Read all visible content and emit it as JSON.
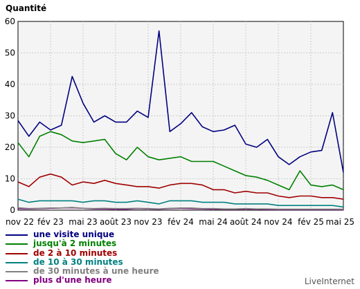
{
  "chart_data": {
    "type": "line",
    "ylabel": "Quantité",
    "ylim": [
      0,
      60
    ],
    "yticks": [
      0,
      10,
      20,
      30,
      40,
      50,
      60
    ],
    "xtick_labels": [
      "nov 22",
      "fév 23",
      "mai 23",
      "août 23",
      "nov 23",
      "fév 24",
      "mai 24",
      "août 24",
      "nov 24",
      "fév 25",
      "mai 25"
    ],
    "grid": true,
    "legend_position": "bottom-left",
    "series": [
      {
        "name": "une visite unique",
        "color": "#000080",
        "values": [
          28.5,
          23.5,
          28,
          25.5,
          27,
          42.5,
          34,
          28,
          30,
          28,
          28,
          31.5,
          29.5,
          57,
          25,
          27.5,
          31,
          26.5,
          25,
          25.5,
          27,
          21,
          20,
          22.5,
          17,
          14.5,
          17,
          18.5,
          19,
          31,
          12
        ]
      },
      {
        "name": "jusqu'à 2 minutes",
        "color": "#008000",
        "values": [
          21.5,
          17,
          23.5,
          25,
          24,
          22,
          21.5,
          22,
          22.5,
          18,
          16,
          20,
          17,
          16,
          16.5,
          17,
          15.5,
          15.5,
          15.5,
          14,
          12.5,
          11,
          10.5,
          9.5,
          8,
          6.5,
          12.5,
          8,
          7.5,
          8,
          6.5
        ]
      },
      {
        "name": "de 2 à 10 minutes",
        "color": "#a00000",
        "values": [
          9,
          7.5,
          10.5,
          11.5,
          10.5,
          8,
          9,
          8.5,
          9.5,
          8.5,
          8,
          7.5,
          7.5,
          7,
          8,
          8.5,
          8.5,
          8,
          6.5,
          6.5,
          5.5,
          6,
          5.5,
          5.5,
          4.5,
          4,
          4.5,
          4.5,
          4,
          4,
          3.5
        ]
      },
      {
        "name": "de 10 à 30 minutes",
        "color": "#008080",
        "values": [
          3.5,
          2.5,
          3,
          3,
          3,
          3,
          2.5,
          3,
          3,
          2.5,
          2.5,
          3,
          2.5,
          2,
          3,
          3,
          3,
          2.5,
          2.5,
          2.5,
          2,
          2,
          2,
          2,
          1.5,
          1.5,
          1.5,
          1.5,
          1.5,
          1.5,
          1
        ]
      },
      {
        "name": "de 30 minutes à une heure",
        "color": "#808080",
        "values": [
          0.8,
          0.5,
          0.6,
          0.7,
          0.7,
          0.9,
          0.6,
          0.5,
          0.6,
          0.5,
          0.5,
          0.6,
          0.5,
          0.4,
          0.6,
          0.7,
          0.7,
          0.5,
          0.5,
          0.4,
          0.4,
          0.5,
          0.4,
          0.4,
          0.3,
          0.3,
          0.3,
          0.3,
          0.3,
          0.3,
          0.3
        ]
      },
      {
        "name": "plus d'une heure",
        "color": "#800080",
        "values": [
          0.5,
          0.4,
          0.5,
          0.6,
          0.7,
          0.8,
          0.6,
          0.4,
          0.4,
          0.3,
          0.3,
          0.5,
          0.4,
          0.3,
          0.5,
          0.6,
          0.5,
          0.4,
          0.3,
          0.3,
          0.3,
          0.3,
          0.3,
          0.2,
          0.2,
          0.2,
          0.2,
          0.2,
          0.2,
          0.2,
          0.1
        ]
      }
    ]
  },
  "credit": "LiveInternet"
}
